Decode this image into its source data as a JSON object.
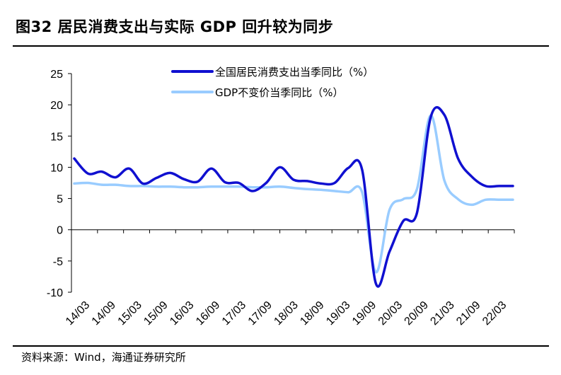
{
  "title": "图32 居民消费支出与实际 GDP 回升较为同步",
  "source": "资料来源：Wind，海通证券研究所",
  "chart_data": {
    "type": "line",
    "title": "",
    "xlabel": "",
    "ylabel": "",
    "ylim": [
      -10,
      25
    ],
    "yticks": [
      25,
      20,
      15,
      10,
      5,
      0,
      -5,
      -10
    ],
    "x_tick_labels": [
      "14/03",
      "14/09",
      "15/03",
      "15/09",
      "16/03",
      "16/09",
      "17/03",
      "17/09",
      "18/03",
      "18/09",
      "19/03",
      "19/09",
      "20/03",
      "20/09",
      "21/03",
      "21/09",
      "22/03"
    ],
    "grid": false,
    "legend_position": "top-center",
    "x": [
      "14/03",
      "14/06",
      "14/09",
      "14/12",
      "15/03",
      "15/06",
      "15/09",
      "15/12",
      "16/03",
      "16/06",
      "16/09",
      "16/12",
      "17/03",
      "17/06",
      "17/09",
      "17/12",
      "18/03",
      "18/06",
      "18/09",
      "18/12",
      "19/03",
      "19/06",
      "19/09",
      "19/12",
      "20/03",
      "20/06",
      "20/09",
      "20/12",
      "21/03",
      "21/06",
      "21/09",
      "21/12",
      "22/03"
    ],
    "series": [
      {
        "name": "全国居民消费支出当季同比（%）",
        "color": "#1010d0",
        "values": [
          11.4,
          9.0,
          9.3,
          8.4,
          9.8,
          7.4,
          8.3,
          9.1,
          8.1,
          7.7,
          9.8,
          7.6,
          7.5,
          6.2,
          7.5,
          10.0,
          8.0,
          7.8,
          7.4,
          7.5,
          9.9,
          9.6,
          -8.6,
          -3.5,
          1.4,
          2.7,
          18.0,
          18.4,
          11.4,
          8.5,
          7.0,
          7.0,
          7.0
        ]
      },
      {
        "name": "GDP不变价当季同比（%）",
        "color": "#99ccff",
        "values": [
          7.4,
          7.5,
          7.2,
          7.2,
          7.0,
          7.0,
          6.9,
          6.9,
          6.8,
          6.8,
          6.9,
          6.9,
          6.9,
          6.8,
          6.8,
          6.9,
          6.7,
          6.5,
          6.4,
          6.2,
          6.0,
          6.0,
          -6.8,
          3.2,
          4.9,
          6.5,
          18.3,
          7.9,
          4.9,
          4.0,
          4.8,
          4.8,
          4.8
        ]
      }
    ]
  }
}
